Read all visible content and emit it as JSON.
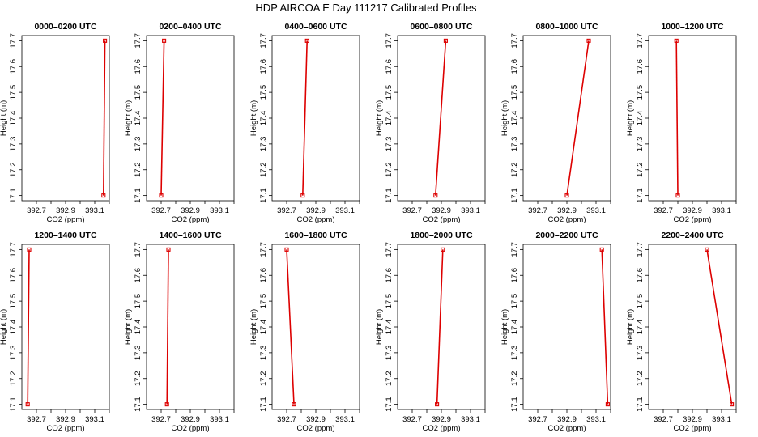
{
  "title": "HDP AIRCOA E  Day 111217  Calibrated Profiles",
  "chart_data": {
    "type": "line",
    "xlabel": "CO2 (ppm)",
    "ylabel": "Height (m)",
    "xlim": [
      392.6,
      393.2
    ],
    "ylim": [
      17.08,
      17.72
    ],
    "xticks": [
      "392.7",
      "392.9",
      "393.1"
    ],
    "yticks": [
      "17.1",
      "17.2",
      "17.3",
      "17.4",
      "17.5",
      "17.6",
      "17.7"
    ],
    "grid": false,
    "series_color": "#dd0000",
    "panels": [
      {
        "title": "0000–0200 UTC",
        "x": [
          393.16,
          393.17
        ],
        "y": [
          17.1,
          17.7
        ]
      },
      {
        "title": "0200–0400 UTC",
        "x": [
          392.7,
          392.72
        ],
        "y": [
          17.1,
          17.7
        ]
      },
      {
        "title": "0400–0600 UTC",
        "x": [
          392.81,
          392.84
        ],
        "y": [
          17.1,
          17.7
        ]
      },
      {
        "title": "0600–0800 UTC",
        "x": [
          392.86,
          392.93
        ],
        "y": [
          17.1,
          17.7
        ]
      },
      {
        "title": "0800–1000 UTC",
        "x": [
          392.9,
          393.05
        ],
        "y": [
          17.1,
          17.7
        ]
      },
      {
        "title": "1000–1200 UTC",
        "x": [
          392.8,
          392.79
        ],
        "y": [
          17.1,
          17.7
        ]
      },
      {
        "title": "1200–1400 UTC",
        "x": [
          392.64,
          392.65
        ],
        "y": [
          17.1,
          17.7
        ]
      },
      {
        "title": "1400–1600 UTC",
        "x": [
          392.74,
          392.75
        ],
        "y": [
          17.1,
          17.7
        ]
      },
      {
        "title": "1600–1800 UTC",
        "x": [
          392.75,
          392.7
        ],
        "y": [
          17.1,
          17.7
        ]
      },
      {
        "title": "1800–2000 UTC",
        "x": [
          392.87,
          392.91
        ],
        "y": [
          17.1,
          17.7
        ]
      },
      {
        "title": "2000–2200 UTC",
        "x": [
          393.18,
          393.14
        ],
        "y": [
          17.1,
          17.7
        ]
      },
      {
        "title": "2200–2400 UTC",
        "x": [
          393.17,
          393.0
        ],
        "y": [
          17.1,
          17.7
        ]
      }
    ]
  }
}
